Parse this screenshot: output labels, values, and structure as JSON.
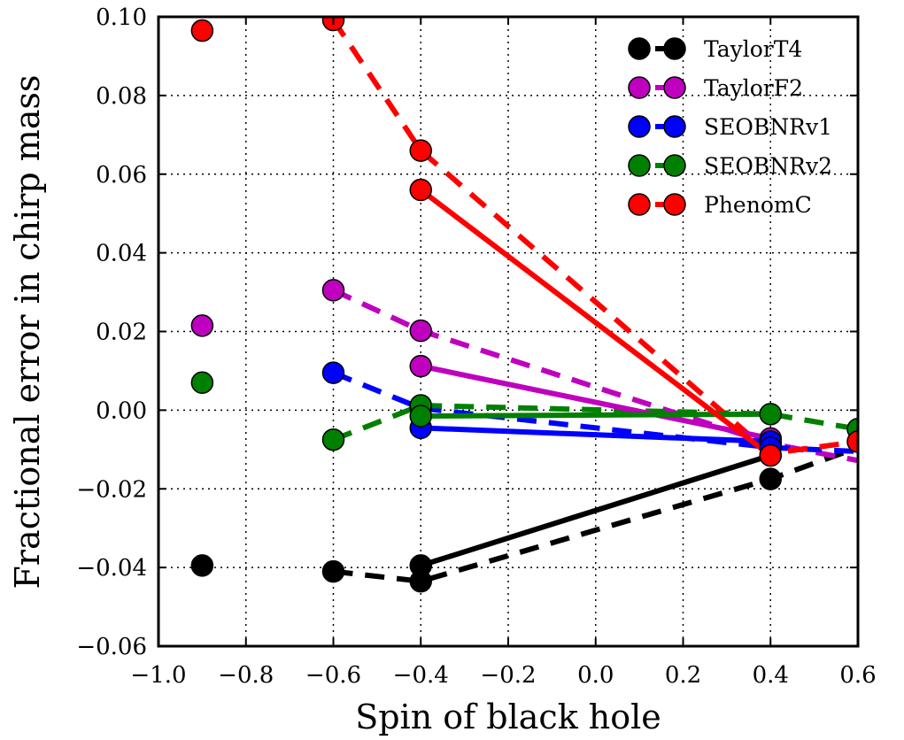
{
  "chart_data": {
    "type": "line",
    "title": "",
    "xlabel": "Spin of black hole",
    "ylabel": "Fractional error in chirp mass",
    "xlim": [
      -1.0,
      0.6
    ],
    "ylim": [
      -0.06,
      0.1
    ],
    "xticks": [
      -1.0,
      -0.8,
      -0.6,
      -0.4,
      -0.2,
      0.0,
      0.2,
      0.4,
      0.6
    ],
    "xtick_labels": [
      "−1.0",
      "−0.8",
      "−0.6",
      "−0.4",
      "−0.2",
      "0.0",
      "0.2",
      "0.4",
      "0.6"
    ],
    "yticks": [
      -0.06,
      -0.04,
      -0.02,
      0.0,
      0.02,
      0.04,
      0.06,
      0.08,
      0.1
    ],
    "ytick_labels": [
      "−0.06",
      "−0.04",
      "−0.02",
      "0.00",
      "0.02",
      "0.04",
      "0.06",
      "0.08",
      "0.10"
    ],
    "grid": true,
    "legend_position": "top-right",
    "series": [
      {
        "name": "TaylorT4",
        "color": "#000000",
        "solid": {
          "x": [
            -0.4,
            0.4
          ],
          "y": [
            -0.0395,
            -0.0115
          ]
        },
        "dashed": {
          "x": [
            -0.6,
            -0.4,
            0.4,
            0.6
          ],
          "y": [
            -0.041,
            -0.0435,
            -0.0175,
            -0.0095
          ]
        },
        "points": {
          "x": [
            -0.9,
            -0.6,
            -0.4,
            -0.4,
            0.4,
            0.4
          ],
          "y": [
            -0.0395,
            -0.041,
            -0.0395,
            -0.0435,
            -0.0115,
            -0.0175
          ]
        }
      },
      {
        "name": "TaylorF2",
        "color": "#bf00bf",
        "solid": {
          "x": [
            -0.4,
            0.4
          ],
          "y": [
            0.0112,
            -0.0072
          ]
        },
        "dashed": {
          "x": [
            -0.6,
            -0.4,
            0.4,
            0.6
          ],
          "y": [
            0.0305,
            0.0202,
            -0.0085,
            -0.0128
          ]
        },
        "points": {
          "x": [
            -0.9,
            -0.6,
            -0.4,
            -0.4,
            0.4,
            0.4
          ],
          "y": [
            0.0215,
            0.0305,
            0.0202,
            0.0112,
            -0.0072,
            -0.0085
          ]
        }
      },
      {
        "name": "SEOBNRv1",
        "color": "#0000ff",
        "solid": {
          "x": [
            -0.4,
            0.4
          ],
          "y": [
            -0.0045,
            -0.008
          ]
        },
        "dashed": {
          "x": [
            -0.6,
            -0.4,
            0.4,
            0.6
          ],
          "y": [
            0.0095,
            0.0005,
            -0.0095,
            -0.0105
          ]
        },
        "points": {
          "x": [
            -0.6,
            -0.4,
            -0.4,
            0.4,
            0.4
          ],
          "y": [
            0.0095,
            0.0005,
            -0.0045,
            -0.008,
            -0.0095
          ]
        }
      },
      {
        "name": "SEOBNRv2",
        "color": "#008000",
        "solid": {
          "x": [
            -0.4,
            0.4
          ],
          "y": [
            -0.0015,
            -0.001
          ]
        },
        "dashed": {
          "x": [
            -0.6,
            -0.4,
            0.4,
            0.6
          ],
          "y": [
            -0.0075,
            0.0012,
            -0.001,
            -0.0048
          ]
        },
        "points": {
          "x": [
            -0.9,
            -0.6,
            -0.4,
            -0.4,
            0.4,
            0.6
          ],
          "y": [
            0.007,
            -0.0075,
            0.0012,
            -0.0015,
            -0.001,
            -0.0048
          ]
        }
      },
      {
        "name": "PhenomC",
        "color": "#ff0000",
        "solid": {
          "x": [
            -0.4,
            0.4
          ],
          "y": [
            0.056,
            -0.0115
          ]
        },
        "dashed": {
          "x": [
            -0.6,
            -0.4,
            0.4,
            0.6
          ],
          "y": [
            0.0992,
            0.066,
            -0.011,
            -0.008
          ]
        },
        "points": {
          "x": [
            -0.9,
            -0.6,
            -0.4,
            -0.4,
            0.4,
            0.6
          ],
          "y": [
            0.0965,
            0.0992,
            0.066,
            0.056,
            -0.0115,
            -0.008
          ]
        }
      }
    ]
  }
}
